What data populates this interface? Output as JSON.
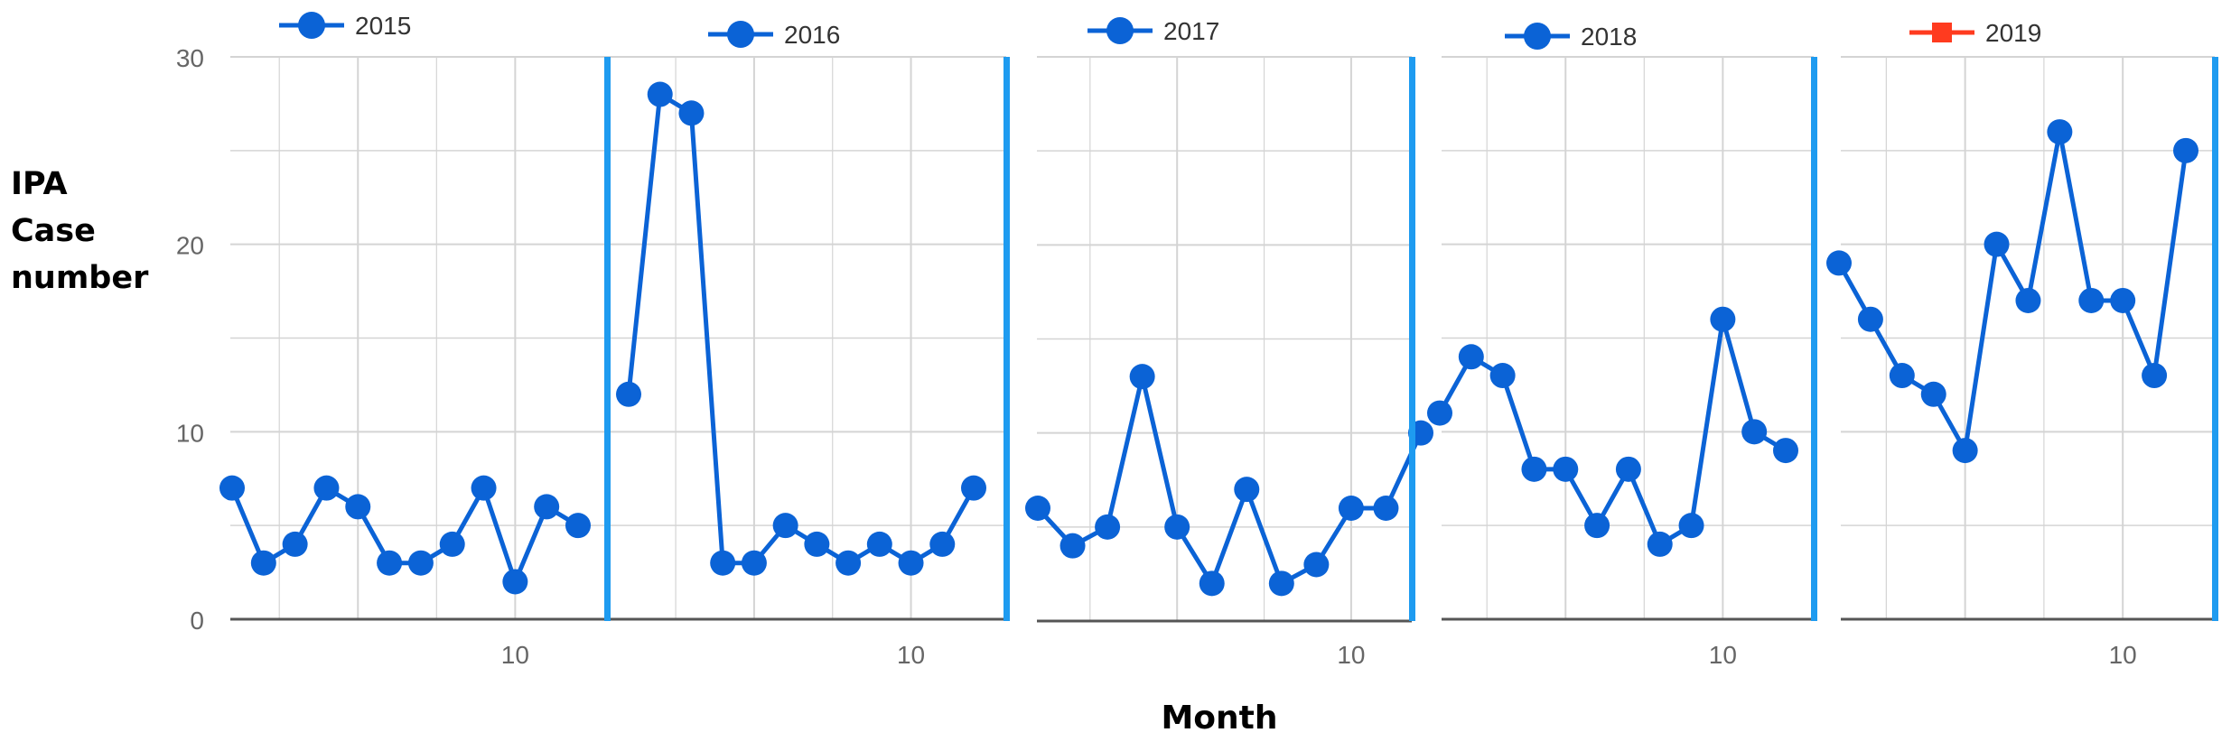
{
  "axis_titles": {
    "y_lines": [
      "IPA",
      "Case",
      "number"
    ],
    "x": "Month"
  },
  "chart_data": [
    {
      "type": "line",
      "legend": "2015",
      "legend_marker": "circle",
      "color": "#0b63d6",
      "x": [
        1,
        2,
        3,
        4,
        5,
        6,
        7,
        8,
        9,
        10,
        11,
        12
      ],
      "values": [
        7,
        3,
        4,
        7,
        6,
        3,
        3,
        4,
        7,
        2,
        6,
        5
      ],
      "xticks": [
        10
      ],
      "yticks": [
        0,
        10,
        20,
        30
      ],
      "ylim": [
        0,
        30
      ]
    },
    {
      "type": "line",
      "legend": "2016",
      "legend_marker": "circle",
      "color": "#0b63d6",
      "x": [
        1,
        2,
        3,
        4,
        5,
        6,
        7,
        8,
        9,
        10,
        11,
        12
      ],
      "values": [
        12,
        28,
        27,
        3,
        3,
        5,
        4,
        3,
        4,
        3,
        4,
        7
      ],
      "xticks": [
        10
      ],
      "ylim": [
        0,
        30
      ]
    },
    {
      "type": "line",
      "legend": "2017",
      "legend_marker": "circle",
      "color": "#0b63d6",
      "x": [
        1,
        2,
        3,
        4,
        5,
        6,
        7,
        8,
        9,
        10,
        11,
        12
      ],
      "values": [
        6,
        4,
        5,
        13,
        5,
        2,
        7,
        2,
        3,
        6,
        6,
        10
      ],
      "xticks": [
        10
      ],
      "ylim": [
        0,
        30
      ]
    },
    {
      "type": "line",
      "legend": "2018",
      "legend_marker": "circle",
      "color": "#0b63d6",
      "x": [
        1,
        2,
        3,
        4,
        5,
        6,
        7,
        8,
        9,
        10,
        11,
        12
      ],
      "values": [
        11,
        14,
        13,
        8,
        8,
        5,
        8,
        4,
        5,
        16,
        10,
        9
      ],
      "xticks": [
        10
      ],
      "ylim": [
        0,
        30
      ]
    },
    {
      "type": "line",
      "legend": "2019",
      "legend_marker": "square",
      "legend_color": "#ff3b1f",
      "color": "#0b63d6",
      "x": [
        1,
        2,
        3,
        4,
        5,
        6,
        7,
        8,
        9,
        10,
        11,
        12
      ],
      "values": [
        19,
        16,
        13,
        12,
        9,
        20,
        17,
        26,
        17,
        17,
        13,
        25
      ],
      "xticks": [
        10
      ],
      "ylim": [
        0,
        30
      ]
    }
  ],
  "colors": {
    "grid": "#d4d4d4",
    "axis": "#555555",
    "separator": "#1e9bf0",
    "tick_text": "#666666"
  }
}
